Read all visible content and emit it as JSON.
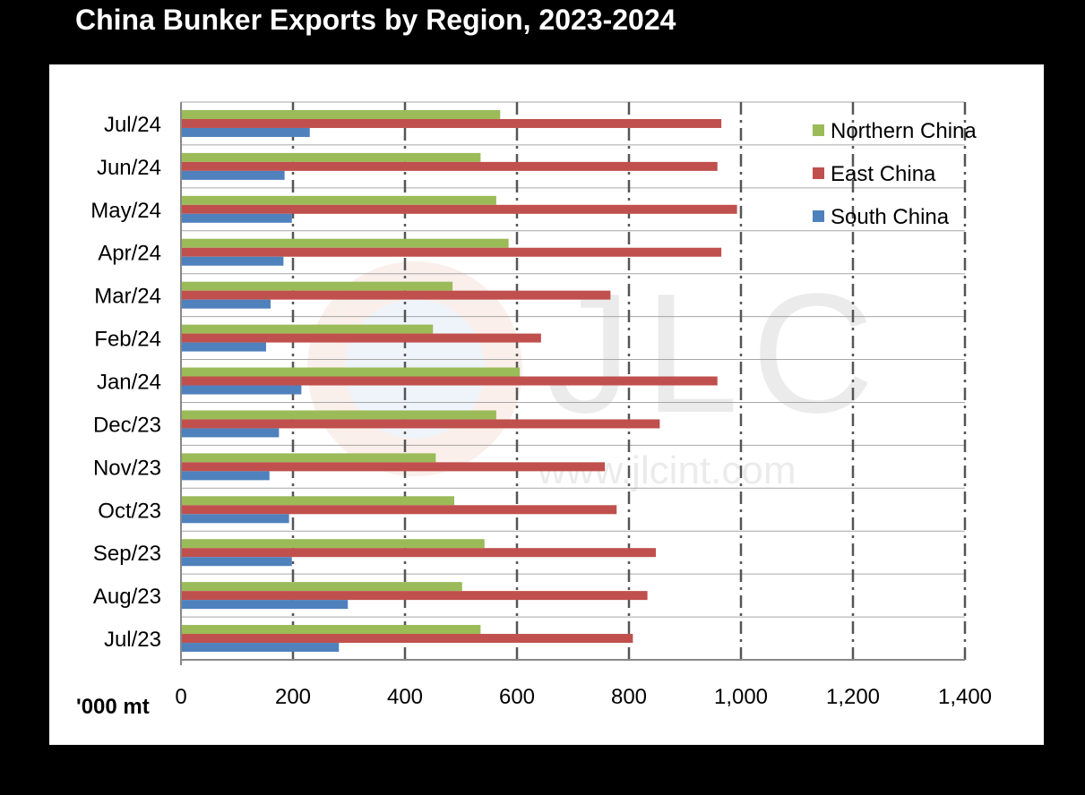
{
  "title": "China Bunker Exports by Region, 2023-2024",
  "watermark": {
    "logo": "JLC",
    "url": "www.jlcint.com"
  },
  "chart_data": {
    "type": "bar",
    "orientation": "horizontal",
    "title": "China Bunker Exports by Region, 2023-2024",
    "unit_label": "'000 mt",
    "categories": [
      "Jul/24",
      "Jun/24",
      "May/24",
      "Apr/24",
      "Mar/24",
      "Feb/24",
      "Jan/24",
      "Dec/23",
      "Nov/23",
      "Oct/23",
      "Sep/23",
      "Aug/23",
      "Jul/23"
    ],
    "series": [
      {
        "name": "Northern China",
        "color": "#9bbb59",
        "values": [
          570,
          535,
          563,
          585,
          485,
          450,
          605,
          563,
          455,
          488,
          542,
          502,
          535
        ]
      },
      {
        "name": "East China",
        "color": "#c0504d",
        "values": [
          965,
          958,
          993,
          965,
          767,
          643,
          958,
          855,
          757,
          778,
          848,
          833,
          807
        ]
      },
      {
        "name": "South China",
        "color": "#4f81bd",
        "values": [
          230,
          185,
          198,
          183,
          160,
          152,
          215,
          175,
          158,
          193,
          198,
          298,
          282
        ]
      }
    ],
    "xlim": [
      0,
      1400
    ],
    "xticks": [
      0,
      200,
      400,
      600,
      800,
      1000,
      1200,
      1400
    ],
    "xtick_labels": [
      "0",
      "200",
      "400",
      "600",
      "800",
      "1,000",
      "1,200",
      "1,400"
    ],
    "grid": "vertical dash-dot lines",
    "legend_position": "top-right"
  }
}
